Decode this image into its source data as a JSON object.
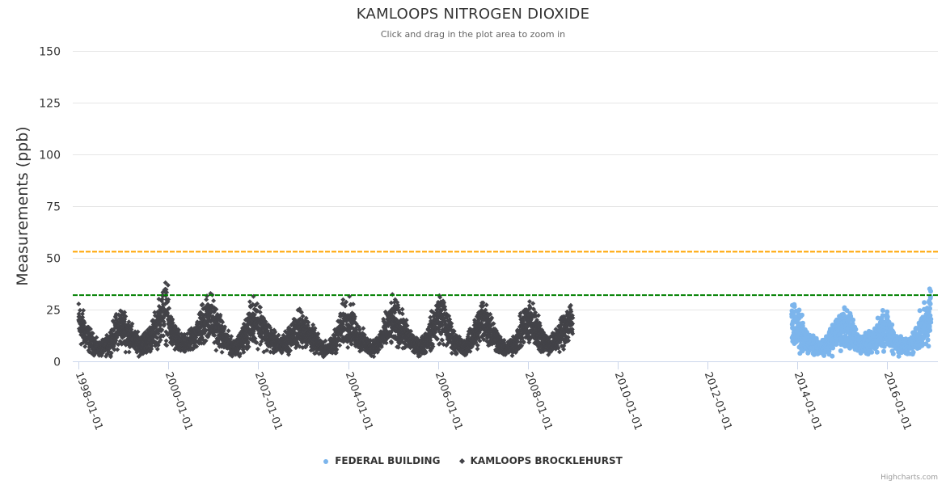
{
  "chart_data": {
    "type": "scatter",
    "title": "KAMLOOPS NITROGEN DIOXIDE",
    "subtitle": "Click and drag in the plot area to zoom in",
    "xlabel": "",
    "ylabel": "Measurements (ppb)",
    "ylim": [
      0,
      150
    ],
    "xlim": [
      "1997-11-15",
      "2017-02-15"
    ],
    "yticks": [
      0,
      25,
      50,
      75,
      100,
      125,
      150
    ],
    "xticks": [
      "1998-01-01",
      "2000-01-01",
      "2002-01-01",
      "2004-01-01",
      "2006-01-01",
      "2008-01-01",
      "2010-01-01",
      "2012-01-01",
      "2014-01-01",
      "2016-01-01"
    ],
    "grid": true,
    "legend_position": "bottom",
    "plot_lines": [
      {
        "value": 53,
        "color": "#FFA500",
        "style": "dash"
      },
      {
        "value": 32,
        "color": "#008000",
        "style": "dash"
      }
    ],
    "series": [
      {
        "name": "FEDERAL BUILDING",
        "color": "#7CB5EC",
        "marker": "circle",
        "start": "2013-11-15",
        "end": "2016-12-20",
        "monthly_mean": [
          19,
          16,
          14,
          12,
          9,
          8,
          7,
          6,
          7,
          8,
          10,
          13,
          15,
          17,
          16,
          14,
          11,
          9,
          8,
          8,
          9,
          11,
          14,
          16,
          15,
          13,
          10,
          8,
          7,
          7,
          8,
          10,
          13,
          16,
          20,
          24
        ],
        "peak_max": 35
      },
      {
        "name": "KAMLOOPS BROCKLEHURST",
        "color": "#434348",
        "marker": "diamond",
        "start": "1998-01-01",
        "end": "2008-12-31",
        "monthly_mean": [
          19,
          16,
          13,
          10,
          8,
          6,
          6,
          7,
          9,
          12,
          15,
          17,
          16,
          14,
          11,
          9,
          8,
          9,
          10,
          12,
          15,
          19,
          23,
          25,
          15,
          12,
          10,
          8,
          8,
          9,
          11,
          14,
          17,
          20,
          22,
          20,
          17,
          14,
          11,
          9,
          7,
          7,
          8,
          11,
          15,
          18,
          21,
          19,
          16,
          13,
          11,
          9,
          8,
          8,
          9,
          11,
          13,
          15,
          16,
          15,
          13,
          11,
          9,
          7,
          6,
          6,
          7,
          10,
          14,
          18,
          20,
          19,
          15,
          12,
          10,
          8,
          7,
          7,
          8,
          11,
          14,
          17,
          19,
          18,
          16,
          14,
          11,
          9,
          7,
          7,
          8,
          11,
          14,
          18,
          22,
          21,
          16,
          13,
          10,
          8,
          7,
          7,
          9,
          12,
          15,
          19,
          21,
          17,
          14,
          11,
          8,
          6,
          6,
          7,
          9,
          12,
          16,
          18,
          19,
          17,
          14,
          11,
          9,
          8,
          9,
          11,
          14,
          17,
          19,
          17
        ],
        "peak_max": 38
      }
    ]
  },
  "credits": "Highcharts.com"
}
